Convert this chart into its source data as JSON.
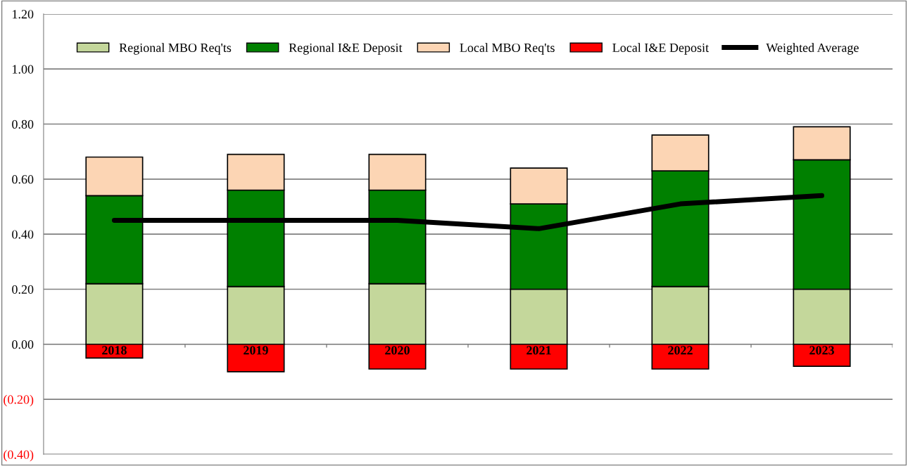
{
  "chart_data": {
    "type": "bar",
    "stacked": true,
    "categories": [
      "2018",
      "2019",
      "2020",
      "2021",
      "2022",
      "2023"
    ],
    "series": [
      {
        "name": "Regional MBO Req'ts",
        "color": "#c4d79b",
        "values": [
          0.22,
          0.21,
          0.22,
          0.2,
          0.21,
          0.2
        ]
      },
      {
        "name": "Regional I&E Deposit",
        "color": "#008000",
        "values": [
          0.32,
          0.35,
          0.34,
          0.31,
          0.42,
          0.47
        ]
      },
      {
        "name": "Local MBO Req'ts",
        "color": "#fcd5b4",
        "values": [
          0.14,
          0.13,
          0.13,
          0.13,
          0.13,
          0.12
        ]
      },
      {
        "name": "Local I&E Deposit",
        "color": "#ff0000",
        "values": [
          -0.05,
          -0.1,
          -0.09,
          -0.09,
          -0.09,
          -0.08
        ]
      },
      {
        "name": "Weighted Average",
        "color": "#000000",
        "type": "line",
        "values": [
          0.45,
          0.45,
          0.45,
          0.42,
          0.51,
          0.54
        ]
      }
    ],
    "ylim": [
      -0.4,
      1.2
    ],
    "yticks": [
      {
        "value": -0.4,
        "label": "(0.40)"
      },
      {
        "value": -0.2,
        "label": "(0.20)"
      },
      {
        "value": 0,
        "label": "0.00"
      },
      {
        "value": 0.2,
        "label": "0.20"
      },
      {
        "value": 0.4,
        "label": "0.40"
      },
      {
        "value": 0.6,
        "label": "0.60"
      },
      {
        "value": 0.8,
        "label": "0.80"
      },
      {
        "value": 1.0,
        "label": "1.00"
      },
      {
        "value": 1.2,
        "label": "1.20"
      }
    ],
    "grid": "y",
    "legend": "top",
    "marker": "none",
    "line_style": "solid"
  }
}
